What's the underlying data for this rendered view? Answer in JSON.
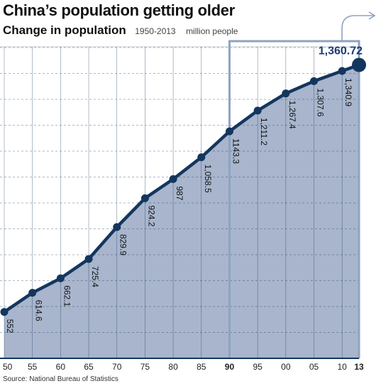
{
  "header": {
    "title": "China’s population getting older",
    "subtitle": "Change in population",
    "date_range": "1950-2013",
    "unit": "million people"
  },
  "source": "Source: National Bureau of Statistics",
  "colors": {
    "line": "#14365e",
    "area": "#a8b5cc",
    "grid": "#14365e",
    "highlight_frame": "#8fa3bf",
    "last_label": "#1a3c6e"
  },
  "chart_data": {
    "type": "area",
    "x": [
      1950,
      1955,
      1960,
      1965,
      1970,
      1975,
      1980,
      1985,
      1990,
      1995,
      2000,
      2005,
      2010,
      2013
    ],
    "x_tick_labels": [
      "50",
      "55",
      "60",
      "65",
      "70",
      "75",
      "80",
      "85",
      "90",
      "95",
      "00",
      "05",
      "10",
      "13"
    ],
    "bold_ticks": [
      "90",
      "13"
    ],
    "values": [
      552,
      614.6,
      662.1,
      725.4,
      829.9,
      924.2,
      987,
      1058.5,
      1143.3,
      1211.2,
      1267.4,
      1307.6,
      1340.9,
      1360.72
    ],
    "value_labels": [
      "552",
      "614.6",
      "662.1",
      "725.4",
      "829.9",
      "924.2",
      "987",
      "1,058.5",
      "1143.3",
      "1,211.2",
      "1,267.4",
      "1,307.6",
      "1,340.9",
      "1,360.72"
    ],
    "title": "China’s population getting older",
    "subtitle": "Change in population",
    "unit": "million people",
    "highlight_range": [
      1990,
      2013
    ],
    "xlabel": "",
    "ylabel": "",
    "ylim": [
      400,
      1420
    ],
    "grid": true,
    "legend": "none"
  }
}
